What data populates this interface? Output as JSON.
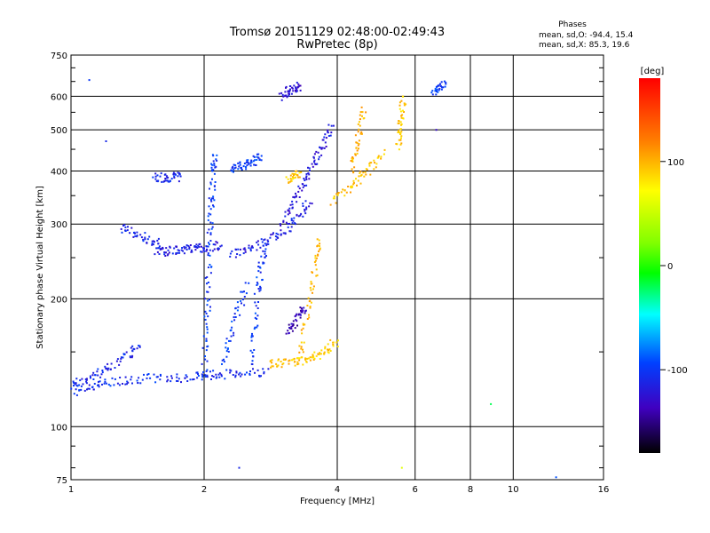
{
  "chart_data": {
    "type": "scatter",
    "title": "Tromsø 20151129 02:48:00-02:49:43",
    "subtitle": "RwPretec (8p)",
    "xlabel": "Frequency [MHz]",
    "ylabel": "Stationary phase Virtual Height [km]",
    "x_scale": "log",
    "y_scale": "log",
    "xlim": [
      1,
      16
    ],
    "ylim": [
      75,
      750
    ],
    "x_ticks": [
      "1",
      "2",
      "4",
      "6",
      "8",
      "10",
      "16"
    ],
    "y_ticks": [
      "75",
      "100",
      "200",
      "300",
      "400",
      "500",
      "600",
      "750"
    ],
    "grid": true,
    "phase_stats": {
      "heading": "Phases",
      "line_o": "mean, sd,O:  -94.4, 15.4",
      "line_x": "mean, sd,X:  85.3, 19.6"
    },
    "colorbar": {
      "label": "[deg]",
      "ticks": [
        "100",
        "0",
        "-100"
      ],
      "range": [
        -180,
        180
      ]
    },
    "traces": [
      {
        "x": [
          1.0,
          1.1,
          1.2,
          1.35,
          1.5,
          1.7,
          1.9,
          2.05,
          2.25,
          2.5,
          2.8
        ],
        "y": [
          120,
          124,
          127,
          129,
          130,
          130,
          131,
          132,
          133,
          134,
          135
        ],
        "phase": -105
      },
      {
        "x": [
          1.0,
          1.08,
          1.15,
          1.25,
          1.35,
          1.45
        ],
        "y": [
          125,
          128,
          134,
          140,
          148,
          158
        ],
        "phase": -110
      },
      {
        "x": [
          2.0,
          2.02,
          2.04,
          2.05,
          2.07,
          2.08,
          2.1,
          2.12
        ],
        "y": [
          135,
          165,
          200,
          250,
          300,
          350,
          400,
          440
        ],
        "phase": -100
      },
      {
        "x": [
          1.55,
          1.65,
          1.75,
          1.85,
          1.95,
          2.05,
          2.2
        ],
        "y": [
          258,
          259,
          260,
          262,
          264,
          265,
          268
        ],
        "phase": -115
      },
      {
        "x": [
          1.3,
          1.4,
          1.5,
          1.6
        ],
        "y": [
          295,
          285,
          275,
          268
        ],
        "phase": -110
      },
      {
        "x": [
          1.55,
          1.62,
          1.7,
          1.78
        ],
        "y": [
          385,
          386,
          387,
          388
        ],
        "phase": -110
      },
      {
        "x": [
          2.3,
          2.5,
          2.7,
          2.9,
          3.1,
          3.3,
          3.5
        ],
        "y": [
          255,
          262,
          270,
          280,
          295,
          315,
          345
        ],
        "phase": -115
      },
      {
        "x": [
          2.2,
          2.3,
          2.4,
          2.5
        ],
        "y": [
          140,
          165,
          190,
          220
        ],
        "phase": -100
      },
      {
        "x": [
          2.55,
          2.6,
          2.65,
          2.7,
          2.75
        ],
        "y": [
          140,
          170,
          210,
          240,
          270
        ],
        "phase": -100
      },
      {
        "x": [
          2.3,
          2.4,
          2.5,
          2.6,
          2.7
        ],
        "y": [
          400,
          408,
          415,
          422,
          430
        ],
        "phase": -100
      },
      {
        "x": [
          3.0,
          3.15,
          3.3,
          3.45,
          3.6,
          3.75,
          3.9
        ],
        "y": [
          300,
          330,
          360,
          395,
          430,
          470,
          520
        ],
        "phase": -120
      },
      {
        "x": [
          3.3,
          3.4,
          3.5,
          3.6,
          3.65
        ],
        "y": [
          145,
          175,
          210,
          250,
          275
        ],
        "phase": 100
      },
      {
        "x": [
          2.8,
          3.0,
          3.2,
          3.4,
          3.6,
          3.8,
          4.0
        ],
        "y": [
          140,
          141,
          142,
          144,
          147,
          152,
          160
        ],
        "phase": 92
      },
      {
        "x": [
          3.1,
          3.2,
          3.3,
          3.4
        ],
        "y": [
          165,
          175,
          185,
          190
        ],
        "phase": -135
      },
      {
        "x": [
          3.9,
          4.2,
          4.5,
          4.8,
          5.1
        ],
        "y": [
          340,
          360,
          385,
          410,
          440
        ],
        "phase": 95
      },
      {
        "x": [
          4.3,
          4.4,
          4.5,
          4.6
        ],
        "y": [
          400,
          450,
          500,
          560
        ],
        "phase": 100
      },
      {
        "x": [
          5.5,
          5.55,
          5.6,
          5.65
        ],
        "y": [
          460,
          500,
          540,
          600
        ],
        "phase": 92
      },
      {
        "x": [
          3.1,
          3.2,
          3.3
        ],
        "y": [
          380,
          390,
          400
        ],
        "phase": 90
      },
      {
        "x": [
          3.0,
          3.1,
          3.2,
          3.3
        ],
        "y": [
          600,
          615,
          625,
          640
        ],
        "phase": -125
      },
      {
        "x": [
          6.6,
          6.8,
          7.0
        ],
        "y": [
          610,
          630,
          640
        ],
        "phase": -100
      }
    ],
    "scatter_points": [
      {
        "x": 8.9,
        "y": 113,
        "phase": -20
      },
      {
        "x": 12.5,
        "y": 76,
        "phase": -90
      },
      {
        "x": 6.7,
        "y": 500,
        "phase": -130
      },
      {
        "x": 5.6,
        "y": 80,
        "phase": 60
      },
      {
        "x": 2.4,
        "y": 80,
        "phase": -110
      },
      {
        "x": 1.1,
        "y": 655,
        "phase": -100
      },
      {
        "x": 1.2,
        "y": 470,
        "phase": -110
      }
    ]
  }
}
